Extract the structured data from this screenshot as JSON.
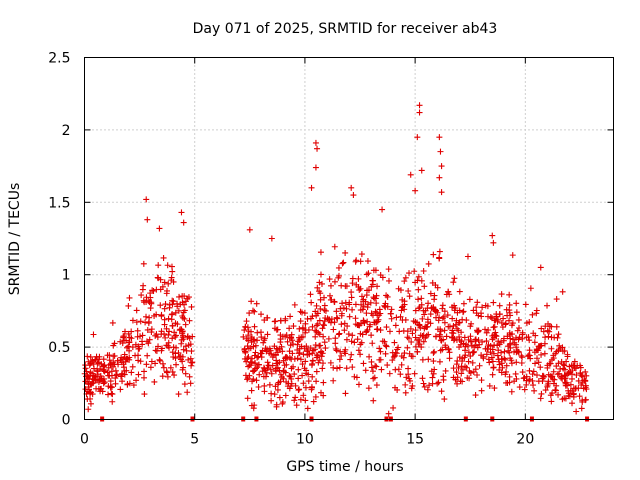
{
  "chart_data": {
    "type": "scatter",
    "title": "Day 071 of 2025, SRMTID for receiver ab43",
    "xlabel": "GPS time / hours",
    "ylabel": "SRMTID / TECUs",
    "xlim": [
      0,
      24
    ],
    "ylim": [
      0,
      2.5
    ],
    "xticks": [
      0,
      5,
      10,
      15,
      20
    ],
    "yticks": [
      0,
      0.5,
      1,
      1.5,
      2,
      2.5
    ],
    "xtick_labels": [
      "0",
      "5",
      "10",
      "15",
      "20"
    ],
    "ytick_labels": [
      "0",
      "0.5",
      "1",
      "1.5",
      "2",
      "2.5"
    ],
    "grid": true,
    "marker": "+",
    "color": "#e00000",
    "coverage_segments": [
      [
        0.0,
        4.9
      ],
      [
        7.2,
        22.8
      ]
    ],
    "envelope": [
      {
        "t": 0.0,
        "base": 0.28,
        "spread": 0.18
      },
      {
        "t": 1.0,
        "base": 0.3,
        "spread": 0.18
      },
      {
        "t": 2.0,
        "base": 0.45,
        "spread": 0.35
      },
      {
        "t": 3.0,
        "base": 0.7,
        "spread": 0.4
      },
      {
        "t": 4.0,
        "base": 0.65,
        "spread": 0.4
      },
      {
        "t": 4.9,
        "base": 0.45,
        "spread": 0.3
      },
      {
        "t": 7.2,
        "base": 0.45,
        "spread": 0.35
      },
      {
        "t": 9.0,
        "base": 0.4,
        "spread": 0.3
      },
      {
        "t": 10.0,
        "base": 0.45,
        "spread": 0.35
      },
      {
        "t": 11.0,
        "base": 0.7,
        "spread": 0.45
      },
      {
        "t": 12.5,
        "base": 0.65,
        "spread": 0.45
      },
      {
        "t": 14.0,
        "base": 0.55,
        "spread": 0.4
      },
      {
        "t": 15.0,
        "base": 0.6,
        "spread": 0.4
      },
      {
        "t": 16.0,
        "base": 0.65,
        "spread": 0.45
      },
      {
        "t": 17.5,
        "base": 0.5,
        "spread": 0.3
      },
      {
        "t": 19.0,
        "base": 0.55,
        "spread": 0.35
      },
      {
        "t": 20.5,
        "base": 0.45,
        "spread": 0.3
      },
      {
        "t": 21.5,
        "base": 0.35,
        "spread": 0.25
      },
      {
        "t": 22.8,
        "base": 0.22,
        "spread": 0.15
      }
    ],
    "peaks": [
      {
        "x": 2.8,
        "y": 1.52
      },
      {
        "x": 2.85,
        "y": 1.38
      },
      {
        "x": 4.4,
        "y": 1.43
      },
      {
        "x": 4.5,
        "y": 1.36
      },
      {
        "x": 7.5,
        "y": 1.31
      },
      {
        "x": 8.5,
        "y": 1.25
      },
      {
        "x": 10.5,
        "y": 1.91
      },
      {
        "x": 10.55,
        "y": 1.87
      },
      {
        "x": 10.5,
        "y": 1.74
      },
      {
        "x": 10.3,
        "y": 1.6
      },
      {
        "x": 12.1,
        "y": 1.6
      },
      {
        "x": 12.2,
        "y": 1.55
      },
      {
        "x": 13.5,
        "y": 1.45
      },
      {
        "x": 14.8,
        "y": 1.69
      },
      {
        "x": 15.2,
        "y": 2.17
      },
      {
        "x": 15.2,
        "y": 2.12
      },
      {
        "x": 15.1,
        "y": 1.95
      },
      {
        "x": 15.3,
        "y": 1.72
      },
      {
        "x": 15.0,
        "y": 1.58
      },
      {
        "x": 16.1,
        "y": 1.95
      },
      {
        "x": 16.15,
        "y": 1.85
      },
      {
        "x": 16.2,
        "y": 1.75
      },
      {
        "x": 16.1,
        "y": 1.67
      },
      {
        "x": 16.2,
        "y": 1.57
      },
      {
        "x": 18.5,
        "y": 1.27
      },
      {
        "x": 18.55,
        "y": 1.22
      },
      {
        "x": 20.7,
        "y": 1.05
      },
      {
        "x": 14.0,
        "y": 0.08
      },
      {
        "x": 13.8,
        "y": 0.04
      }
    ],
    "gap_markers": [
      0.8,
      4.9,
      7.2,
      7.8,
      10.3,
      13.7,
      13.9,
      17.3,
      18.5,
      20.3,
      22.8
    ]
  }
}
